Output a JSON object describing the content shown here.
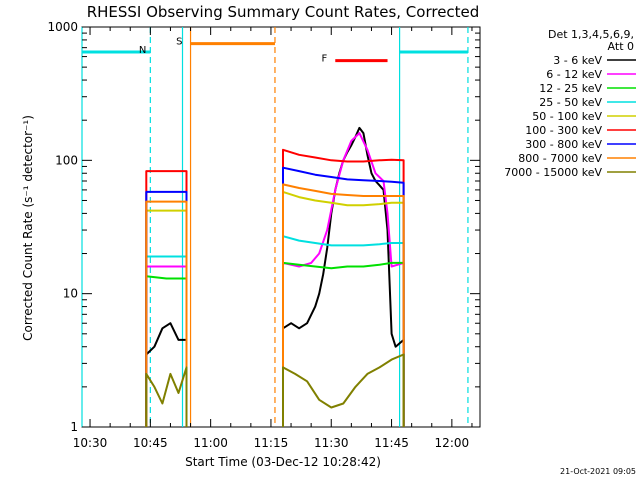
{
  "chart_data": {
    "type": "line",
    "title": "RHESSI Observing Summary Count Rates, Corrected",
    "xlabel": "Start Time (03-Dec-12 10:28:42)",
    "ylabel": "Corrected Count Rate (s⁻¹ detector⁻¹)",
    "y_scale": "log",
    "xlim": [
      "10:28",
      "12:07"
    ],
    "ylim": [
      1,
      1000
    ],
    "x_ticks": [
      "10:30",
      "10:45",
      "11:00",
      "11:15",
      "11:30",
      "11:45",
      "12:00"
    ],
    "y_ticks": [
      "1",
      "10",
      "100",
      "1000"
    ],
    "grid": false,
    "legend": {
      "placement": "right",
      "header": [
        "Det 1,3,4,5,6,9,",
        "Att 0"
      ],
      "entries": [
        {
          "label": "3 - 6 keV",
          "color": "#000000"
        },
        {
          "label": "6 - 12 keV",
          "color": "#ff00ff"
        },
        {
          "label": "12 - 25 keV",
          "color": "#00e000"
        },
        {
          "label": "25 - 50 keV",
          "color": "#00e0e0"
        },
        {
          "label": "50 - 100 keV",
          "color": "#d0d000"
        },
        {
          "label": "100 - 300 keV",
          "color": "#ff0000"
        },
        {
          "label": "300 - 800 keV",
          "color": "#0000ff"
        },
        {
          "label": "800 - 7000 keV",
          "color": "#ff8000"
        },
        {
          "label": "7000 - 15000 keV",
          "color": "#808000"
        }
      ]
    },
    "data_intervals": [
      [
        "10:44",
        "10:54"
      ],
      [
        "11:18",
        "11:48"
      ]
    ],
    "series": [
      {
        "name": "3 - 6 keV",
        "color": "#000000",
        "segments": [
          [
            [
              "10:44",
              3.5
            ],
            [
              "10:46",
              4.0
            ],
            [
              "10:48",
              5.5
            ],
            [
              "10:50",
              6.0
            ],
            [
              "10:52",
              4.5
            ],
            [
              "10:54",
              4.5
            ]
          ],
          [
            [
              "11:18",
              5.5
            ],
            [
              "11:20",
              6.0
            ],
            [
              "11:22",
              5.5
            ],
            [
              "11:24",
              6.0
            ],
            [
              "11:26",
              8.0
            ],
            [
              "11:27",
              10
            ],
            [
              "11:28",
              14
            ],
            [
              "11:29",
              22
            ],
            [
              "11:30",
              40
            ],
            [
              "11:31",
              60
            ],
            [
              "11:32",
              80
            ],
            [
              "11:33",
              100
            ],
            [
              "11:34",
              115
            ],
            [
              "11:35",
              130
            ],
            [
              "11:36",
              150
            ],
            [
              "11:37",
              175
            ],
            [
              "11:38",
              160
            ],
            [
              "11:39",
              110
            ],
            [
              "11:40",
              80
            ],
            [
              "11:41",
              70
            ],
            [
              "11:42",
              65
            ],
            [
              "11:43",
              60
            ],
            [
              "11:44",
              30
            ],
            [
              "11:45",
              5.0
            ],
            [
              "11:46",
              4.0
            ],
            [
              "11:48",
              4.5
            ]
          ]
        ]
      },
      {
        "name": "6 - 12 keV",
        "color": "#ff00ff",
        "segments": [
          [
            [
              "10:44",
              16
            ],
            [
              "10:49",
              16
            ],
            [
              "10:54",
              16
            ]
          ],
          [
            [
              "11:18",
              17
            ],
            [
              "11:22",
              16
            ],
            [
              "11:25",
              17
            ],
            [
              "11:27",
              20
            ],
            [
              "11:29",
              30
            ],
            [
              "11:31",
              60
            ],
            [
              "11:33",
              100
            ],
            [
              "11:35",
              140
            ],
            [
              "11:37",
              160
            ],
            [
              "11:39",
              120
            ],
            [
              "11:41",
              80
            ],
            [
              "11:43",
              70
            ],
            [
              "11:44",
              40
            ],
            [
              "11:45",
              16
            ],
            [
              "11:48",
              17
            ]
          ]
        ]
      },
      {
        "name": "12 - 25 keV",
        "color": "#00e000",
        "segments": [
          [
            [
              "10:44",
              13.5
            ],
            [
              "10:49",
              13
            ],
            [
              "10:54",
              13
            ]
          ],
          [
            [
              "11:18",
              17
            ],
            [
              "11:22",
              16.5
            ],
            [
              "11:26",
              16
            ],
            [
              "11:30",
              15.5
            ],
            [
              "11:34",
              16
            ],
            [
              "11:38",
              16
            ],
            [
              "11:42",
              16.5
            ],
            [
              "11:45",
              17
            ],
            [
              "11:48",
              17
            ]
          ]
        ]
      },
      {
        "name": "25 - 50 keV",
        "color": "#00e0e0",
        "segments": [
          [
            [
              "10:44",
              19
            ],
            [
              "10:49",
              19
            ],
            [
              "10:54",
              19
            ]
          ],
          [
            [
              "11:18",
              27
            ],
            [
              "11:22",
              25
            ],
            [
              "11:26",
              24
            ],
            [
              "11:30",
              23
            ],
            [
              "11:34",
              23
            ],
            [
              "11:38",
              23
            ],
            [
              "11:42",
              23.5
            ],
            [
              "11:45",
              24
            ],
            [
              "11:48",
              24
            ]
          ]
        ]
      },
      {
        "name": "50 - 100 keV",
        "color": "#d0d000",
        "segments": [
          [
            [
              "10:44",
              42
            ],
            [
              "10:49",
              42
            ],
            [
              "10:54",
              42
            ]
          ],
          [
            [
              "11:18",
              58
            ],
            [
              "11:22",
              53
            ],
            [
              "11:26",
              50
            ],
            [
              "11:30",
              48
            ],
            [
              "11:34",
              46
            ],
            [
              "11:38",
              46
            ],
            [
              "11:42",
              47
            ],
            [
              "11:45",
              48
            ],
            [
              "11:48",
              48
            ]
          ]
        ]
      },
      {
        "name": "100 - 300 keV",
        "color": "#ff0000",
        "segments": [
          [
            [
              "10:44",
              83
            ],
            [
              "10:49",
              83
            ],
            [
              "10:54",
              83
            ]
          ],
          [
            [
              "11:18",
              120
            ],
            [
              "11:22",
              110
            ],
            [
              "11:26",
              105
            ],
            [
              "11:30",
              100
            ],
            [
              "11:34",
              98
            ],
            [
              "11:38",
              98
            ],
            [
              "11:42",
              100
            ],
            [
              "11:45",
              101
            ],
            [
              "11:48",
              100
            ]
          ]
        ]
      },
      {
        "name": "300 - 800 keV",
        "color": "#0000ff",
        "segments": [
          [
            [
              "10:44",
              58
            ],
            [
              "10:49",
              58
            ],
            [
              "10:54",
              58
            ]
          ],
          [
            [
              "11:18",
              88
            ],
            [
              "11:22",
              83
            ],
            [
              "11:26",
              78
            ],
            [
              "11:30",
              75
            ],
            [
              "11:34",
              72
            ],
            [
              "11:38",
              71
            ],
            [
              "11:42",
              70
            ],
            [
              "11:45",
              69
            ],
            [
              "11:48",
              68
            ]
          ]
        ]
      },
      {
        "name": "800 - 7000 keV",
        "color": "#ff8000",
        "segments": [
          [
            [
              "10:44",
              49
            ],
            [
              "10:49",
              49
            ],
            [
              "10:54",
              49
            ]
          ],
          [
            [
              "11:18",
              66
            ],
            [
              "11:22",
              62
            ],
            [
              "11:26",
              59
            ],
            [
              "11:30",
              56
            ],
            [
              "11:34",
              55
            ],
            [
              "11:38",
              54
            ],
            [
              "11:42",
              54
            ],
            [
              "11:45",
              54
            ],
            [
              "11:48",
              54
            ]
          ]
        ]
      },
      {
        "name": "7000 - 15000 keV",
        "color": "#808000",
        "segments": [
          [
            [
              "10:44",
              2.5
            ],
            [
              "10:46",
              2.0
            ],
            [
              "10:48",
              1.5
            ],
            [
              "10:50",
              2.5
            ],
            [
              "10:52",
              1.8
            ],
            [
              "10:54",
              2.8
            ]
          ],
          [
            [
              "11:18",
              2.8
            ],
            [
              "11:21",
              2.5
            ],
            [
              "11:24",
              2.2
            ],
            [
              "11:27",
              1.6
            ],
            [
              "11:30",
              1.4
            ],
            [
              "11:33",
              1.5
            ],
            [
              "11:36",
              2.0
            ],
            [
              "11:39",
              2.5
            ],
            [
              "11:42",
              2.8
            ],
            [
              "11:45",
              3.2
            ],
            [
              "11:48",
              3.5
            ]
          ]
        ]
      }
    ],
    "annotations": {
      "flags": [
        {
          "label": "N",
          "color": "#00e0e0",
          "intervals": [
            [
              "10:28",
              "10:45"
            ],
            [
              "11:47",
              "12:04"
            ]
          ],
          "y": 650
        },
        {
          "label": "S",
          "color": "#ff8000",
          "intervals": [
            [
              "10:55",
              "11:16"
            ]
          ],
          "y": 750
        },
        {
          "label": "F",
          "color": "#ff0000",
          "intervals": [
            [
              "11:31",
              "11:44"
            ]
          ],
          "y": 560
        }
      ],
      "vlines": [
        {
          "x": "10:28",
          "style": "solid",
          "color": "#00e0e0"
        },
        {
          "x": "10:45",
          "style": "dashed",
          "color": "#00e0e0"
        },
        {
          "x": "10:53",
          "style": "solid",
          "color": "#00e0e0"
        },
        {
          "x": "10:55",
          "style": "solid",
          "color": "#ff8000"
        },
        {
          "x": "11:16",
          "style": "dashed",
          "color": "#ff8000"
        },
        {
          "x": "11:47",
          "style": "solid",
          "color": "#00e0e0"
        },
        {
          "x": "12:04",
          "style": "dashed",
          "color": "#00e0e0"
        }
      ]
    },
    "timestamp": "21-Oct-2021 09:05"
  }
}
